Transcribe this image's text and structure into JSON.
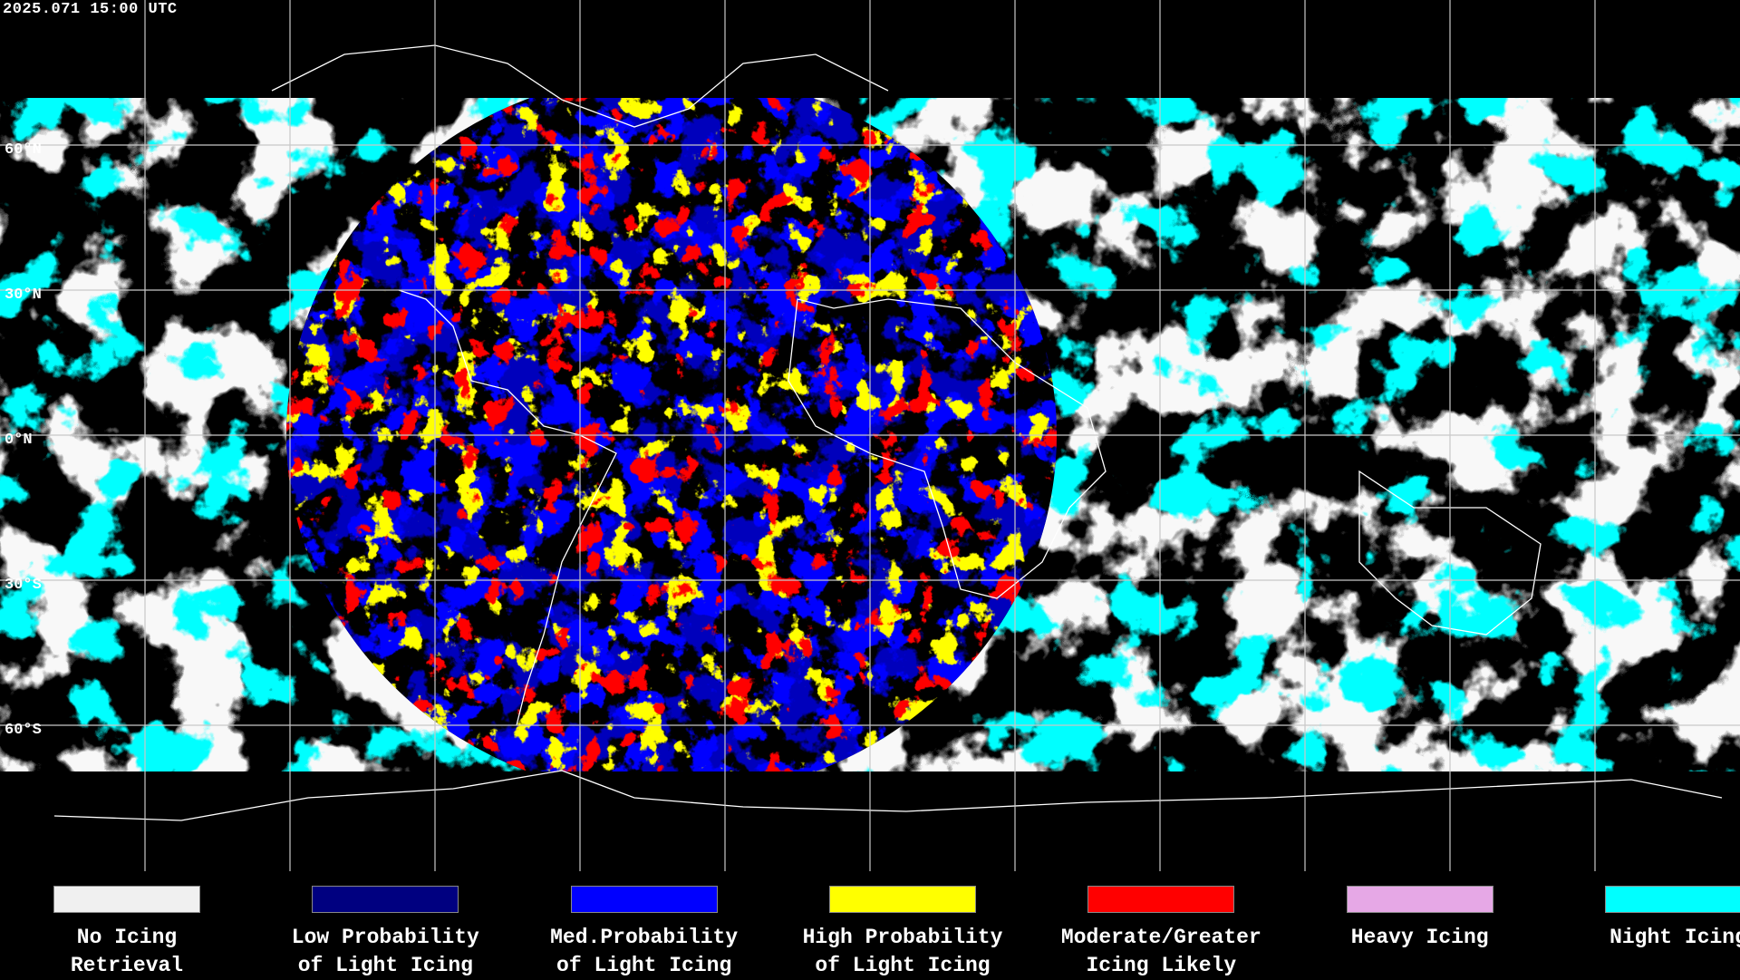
{
  "timestamp": "2025.071 15:00 UTC",
  "latitudes": [
    "60°N",
    "30°N",
    "0°N",
    "30°S",
    "60°S"
  ],
  "legend": [
    {
      "lines": [
        "No Icing",
        "Retrieval"
      ],
      "color": "#f0f0f0"
    },
    {
      "lines": [
        "Low Probability",
        "of Light Icing"
      ],
      "color": "#000080"
    },
    {
      "lines": [
        "Med.Probability",
        "of Light Icing"
      ],
      "color": "#0000ff"
    },
    {
      "lines": [
        "High Probability",
        "of Light Icing"
      ],
      "color": "#ffff00"
    },
    {
      "lines": [
        "Moderate/Greater",
        "Icing Likely"
      ],
      "color": "#ff0000"
    },
    {
      "lines": [
        "Heavy Icing"
      ],
      "color": "#e6a8e6"
    },
    {
      "lines": [
        "Night Icing"
      ],
      "color": "#00ffff"
    }
  ]
}
